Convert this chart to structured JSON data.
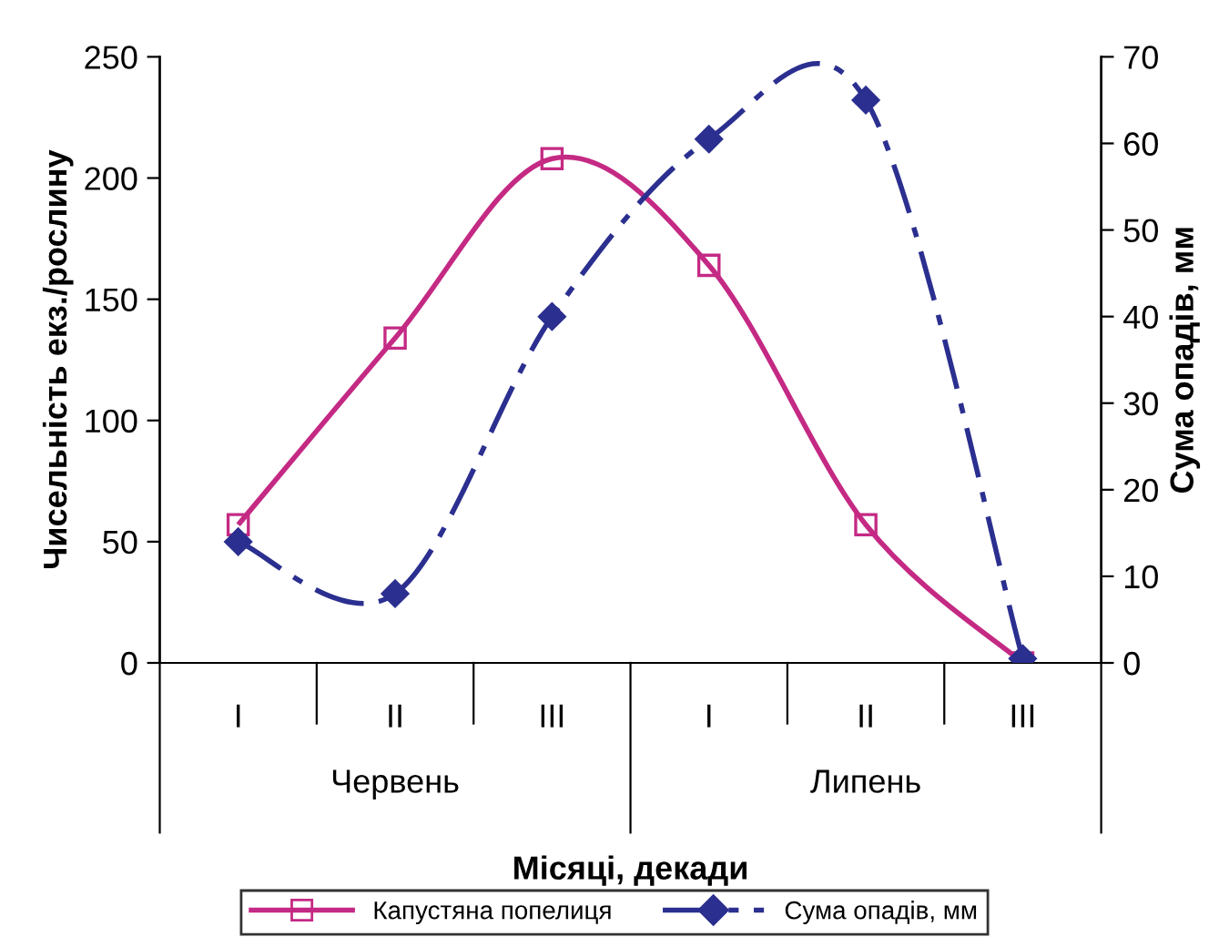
{
  "chart_data": {
    "type": "line",
    "categories": [
      "I",
      "II",
      "III",
      "I",
      "II",
      "III"
    ],
    "xlabel": "Місяці, декади",
    "ylabel": "Чисельність екз./рослину",
    "y2label": "Сума опадів, мм",
    "annotations": [
      "Червень",
      "Липень"
    ],
    "series": [
      {
        "name": "Капустяна попелиця",
        "color": "#c42a84",
        "values": [
          57,
          134,
          208,
          164,
          57,
          0
        ],
        "marker": "square",
        "line_style": "solid"
      },
      {
        "name": "Сума опадів, мм",
        "color": "#2b2f8f",
        "values": [
          14,
          8,
          40,
          60.5,
          65,
          0.5
        ],
        "marker": "diamond",
        "line_style": "dashed",
        "axis": "y2"
      }
    ],
    "ylim": [
      0,
      250
    ],
    "yticks": [
      0,
      50,
      100,
      150,
      200,
      250
    ],
    "y2lim": [
      0,
      70
    ],
    "y2ticks": [
      0,
      10,
      20,
      30,
      40,
      50,
      60,
      70
    ],
    "grid": false,
    "legend": "bottom"
  }
}
